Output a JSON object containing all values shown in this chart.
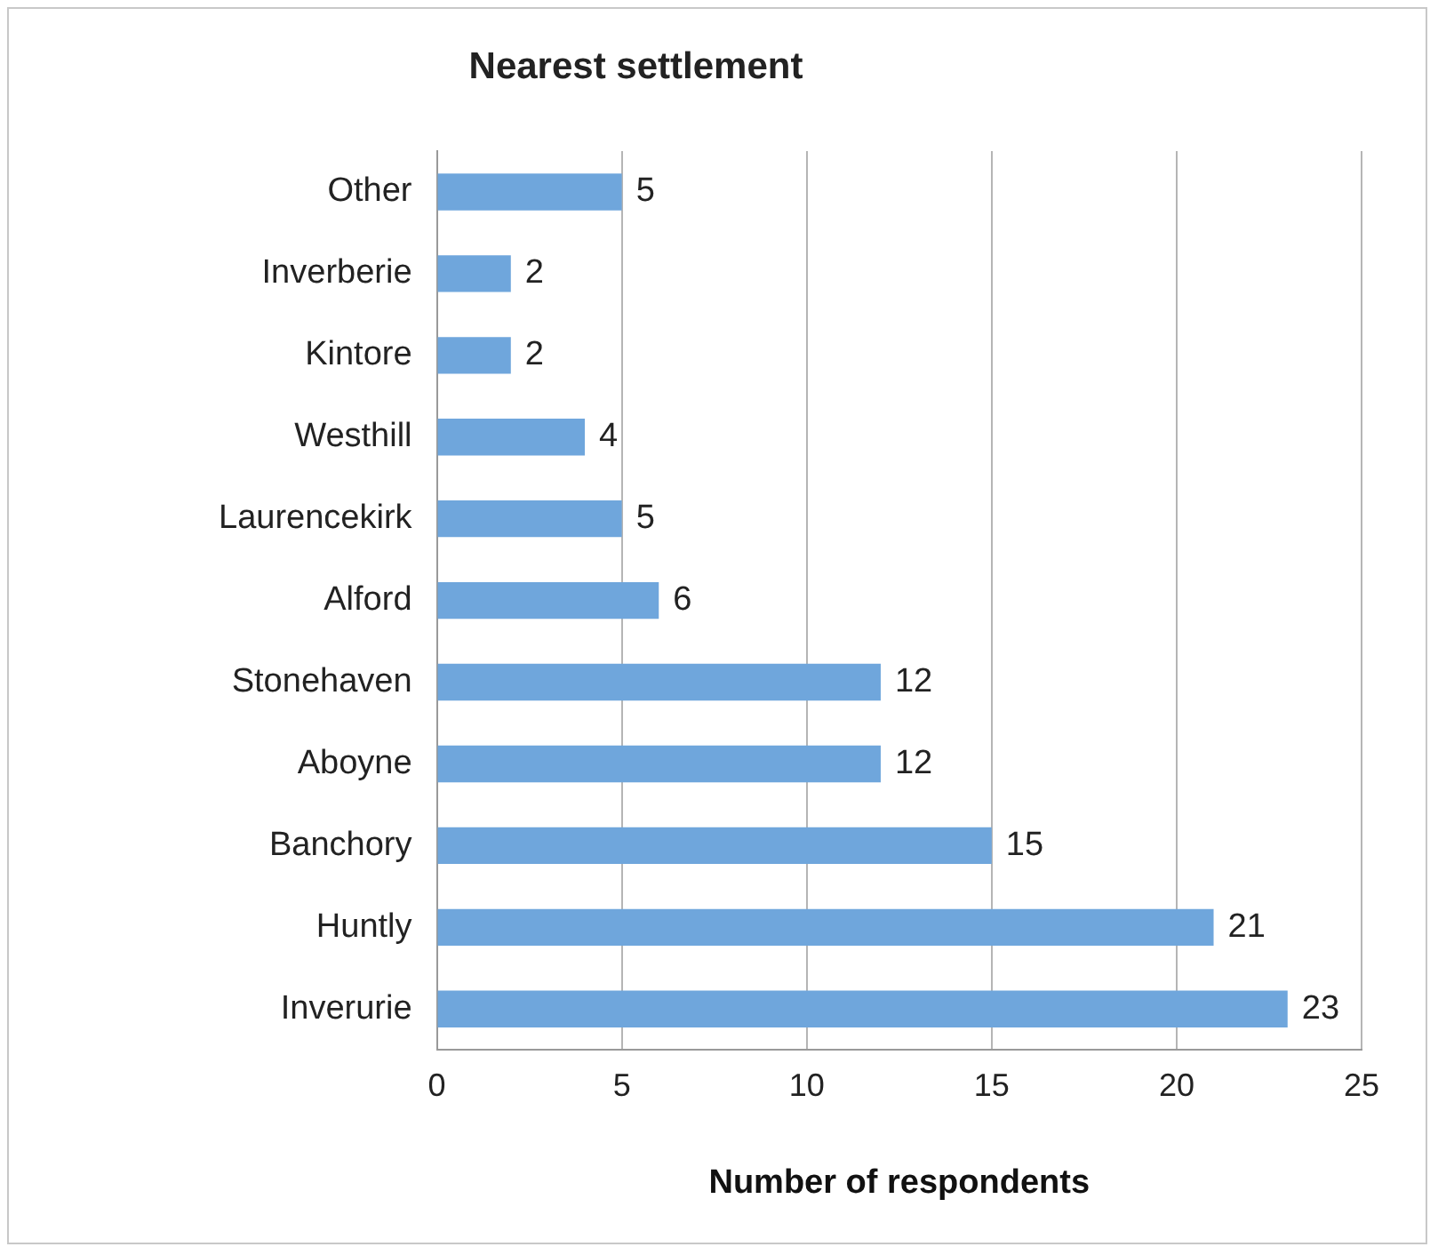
{
  "chart_data": {
    "type": "bar",
    "orientation": "horizontal",
    "title": "Nearest settlement",
    "xlabel": "Number of respondents",
    "categories": [
      "Other",
      "Inverberie",
      "Kintore",
      "Westhill",
      "Laurencekirk",
      "Alford",
      "Stonehaven",
      "Aboyne",
      "Banchory",
      "Huntly",
      "Inverurie"
    ],
    "values": [
      5,
      2,
      2,
      4,
      5,
      6,
      12,
      12,
      15,
      21,
      23
    ],
    "color": "#6fa6dc",
    "xlim": [
      0,
      25
    ],
    "xticks": [
      0,
      5,
      10,
      15,
      20,
      25
    ],
    "grid": "x",
    "data_labels": true,
    "legend": false
  }
}
